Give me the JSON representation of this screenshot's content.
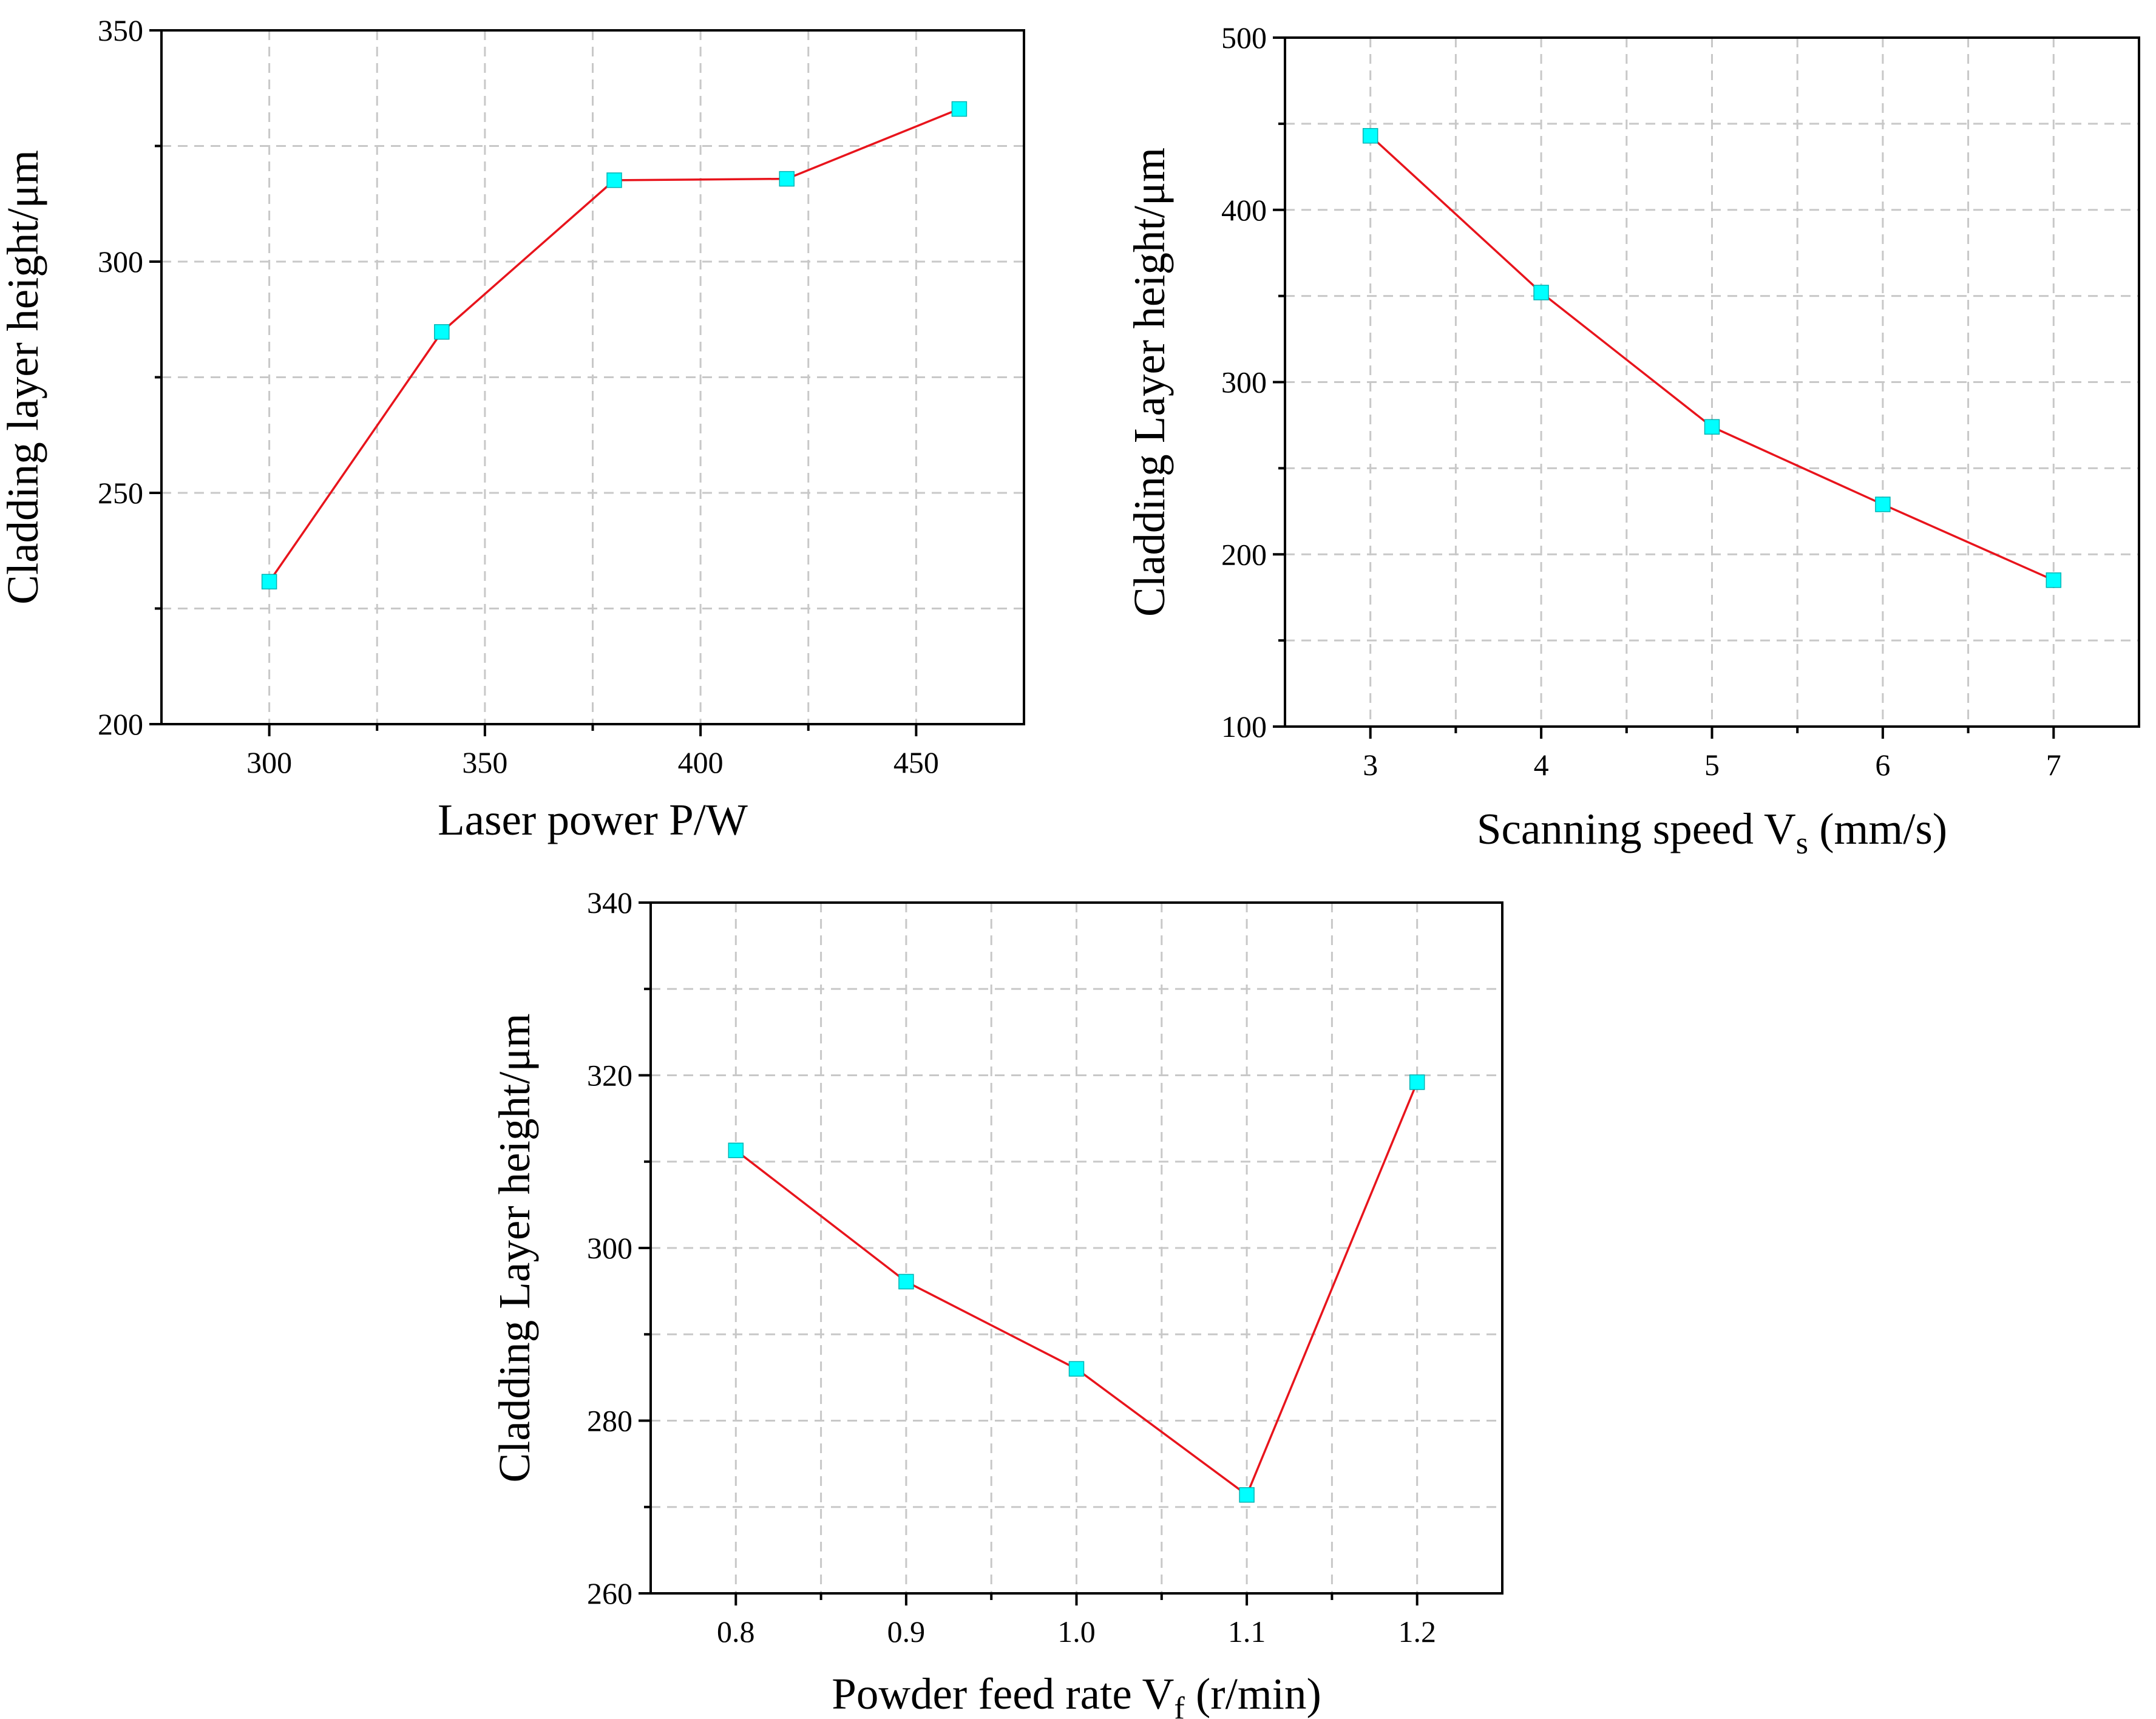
{
  "chart_data": [
    {
      "type": "line",
      "id": "laser-power",
      "title": "",
      "xlabel": {
        "main": "Laser power P/W",
        "sub": "",
        "after": ""
      },
      "ylabel": "Cladding layer height/μm",
      "x": [
        300,
        340,
        380,
        420,
        460
      ],
      "series": [
        {
          "name": "Cladding layer height",
          "values": [
            230.8,
            284.8,
            317.6,
            317.9,
            333.0
          ]
        }
      ],
      "xlim": [
        275,
        475
      ],
      "ylim": [
        200,
        350
      ],
      "xticks": [
        300,
        350,
        400,
        450
      ],
      "xtick_labels": [
        "300",
        "350",
        "400",
        "450"
      ],
      "xminor": [
        325,
        375,
        425
      ],
      "yticks": [
        200,
        250,
        300,
        350
      ],
      "ytick_labels": [
        "200",
        "250",
        "300",
        "350"
      ],
      "yminor": [
        225,
        275,
        325
      ],
      "grid": true,
      "colors": {
        "line": "#e8141c",
        "marker": "#00ffff"
      }
    },
    {
      "type": "line",
      "id": "scanning-speed",
      "title": "",
      "xlabel": {
        "main": "Scanning speed V",
        "sub": "s",
        "after": " (mm/s)"
      },
      "ylabel": "Cladding Layer height/μm",
      "x": [
        3,
        4,
        5,
        6,
        7
      ],
      "series": [
        {
          "name": "Cladding layer height",
          "values": [
            443,
            352,
            274,
            229,
            185
          ]
        }
      ],
      "xlim": [
        2.5,
        7.5
      ],
      "ylim": [
        100,
        500
      ],
      "xticks": [
        3,
        4,
        5,
        6,
        7
      ],
      "xtick_labels": [
        "3",
        "4",
        "5",
        "6",
        "7"
      ],
      "xminor": [
        3.5,
        4.5,
        5.5,
        6.5
      ],
      "yticks": [
        100,
        200,
        300,
        400,
        500
      ],
      "ytick_labels": [
        "100",
        "200",
        "300",
        "400",
        "500"
      ],
      "yminor": [
        150,
        250,
        350,
        450
      ],
      "grid": true,
      "colors": {
        "line": "#e8141c",
        "marker": "#00ffff"
      }
    },
    {
      "type": "line",
      "id": "powder-feed-rate",
      "title": "",
      "xlabel": {
        "main": "Powder feed rate V",
        "sub": "f",
        "after": " (r/min)"
      },
      "ylabel": "Cladding Layer height/μm",
      "x": [
        0.8,
        0.9,
        1.0,
        1.1,
        1.2
      ],
      "series": [
        {
          "name": "Cladding layer height",
          "values": [
            311.3,
            296.1,
            286.0,
            271.4,
            319.2
          ]
        }
      ],
      "xlim": [
        0.75,
        1.25
      ],
      "ylim": [
        260,
        340
      ],
      "xticks": [
        0.8,
        0.9,
        1.0,
        1.1,
        1.2
      ],
      "xtick_labels": [
        "0.8",
        "0.9",
        "1.0",
        "1.1",
        "1.2"
      ],
      "xminor": [
        0.85,
        0.95,
        1.05,
        1.15
      ],
      "yticks": [
        260,
        280,
        300,
        320,
        340
      ],
      "ytick_labels": [
        "260",
        "280",
        "300",
        "320",
        "340"
      ],
      "yminor": [
        270,
        290,
        310,
        330
      ],
      "grid": true,
      "colors": {
        "line": "#e8141c",
        "marker": "#00ffff"
      }
    }
  ]
}
